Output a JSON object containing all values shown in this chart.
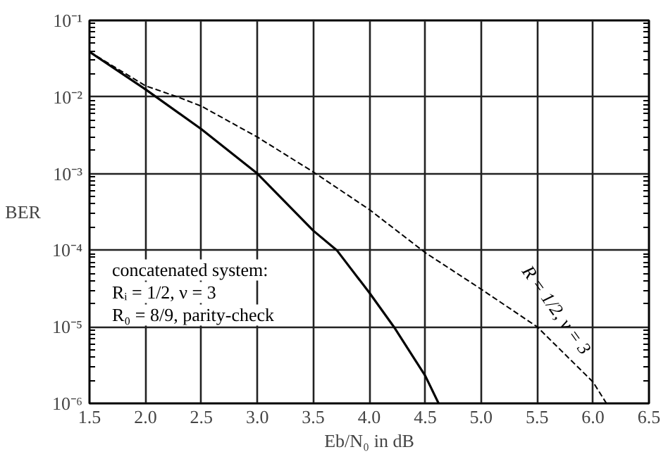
{
  "chart_data": {
    "type": "line",
    "xlabel": "Eb/N₀ in dB",
    "ylabel": "BER",
    "log": "y",
    "grid": true,
    "marker": "none",
    "xlim": [
      1.5,
      6.5
    ],
    "xticks": [
      {
        "value": 1.5,
        "label": "1.5"
      },
      {
        "value": 2,
        "label": "2.0"
      },
      {
        "value": 2.5,
        "label": "2.5"
      },
      {
        "value": 3,
        "label": "3.0"
      },
      {
        "value": 3.5,
        "label": "3.5"
      },
      {
        "value": 4,
        "label": "4.0"
      },
      {
        "value": 4.5,
        "label": "4.5"
      },
      {
        "value": 5,
        "label": "5.0"
      },
      {
        "value": 5.5,
        "label": "5.5"
      },
      {
        "value": 6,
        "label": "6.0"
      },
      {
        "value": 6.5,
        "label": "6.5"
      }
    ],
    "ylim": [
      1e-06,
      0.1
    ],
    "yticks": [
      {
        "value": 1e-06,
        "label": "10⁻⁶"
      },
      {
        "value": 1e-05,
        "label": "10⁻⁵"
      },
      {
        "value": 0.0001,
        "label": "10⁻⁴"
      },
      {
        "value": 0.001,
        "label": "10⁻³"
      },
      {
        "value": 0.01,
        "label": "10⁻²"
      },
      {
        "value": 0.1,
        "label": "10⁻¹"
      }
    ],
    "series": [
      {
        "color": "#000000",
        "line_style": "solid",
        "x": [
          1.5,
          2.0,
          2.5,
          3.0,
          3.5,
          3.71,
          4.0,
          4.22,
          4.5,
          4.62
        ],
        "values": [
          0.039,
          0.0126,
          0.0038,
          0.001,
          0.00018,
          0.0001,
          2.8e-05,
          1e-05,
          2.3e-06,
          1e-06
        ]
      },
      {
        "name": "R = 1/2, ν = 3",
        "color": "#000000",
        "line_style": "dashed",
        "x": [
          1.5,
          2.0,
          2.29,
          2.5,
          3.0,
          3.5,
          4.0,
          4.5,
          5.0,
          5.5,
          6.0,
          6.12
        ],
        "values": [
          0.039,
          0.014,
          0.01,
          0.0076,
          0.003,
          0.00105,
          0.00034,
          9.3e-05,
          3.1e-05,
          1e-05,
          1.9e-06,
          1e-06
        ]
      }
    ],
    "annotations": [
      "concatenated system:\nRᵢ = 1/2, ν = 3\nR₀ = 8/9, parity-check"
    ]
  }
}
